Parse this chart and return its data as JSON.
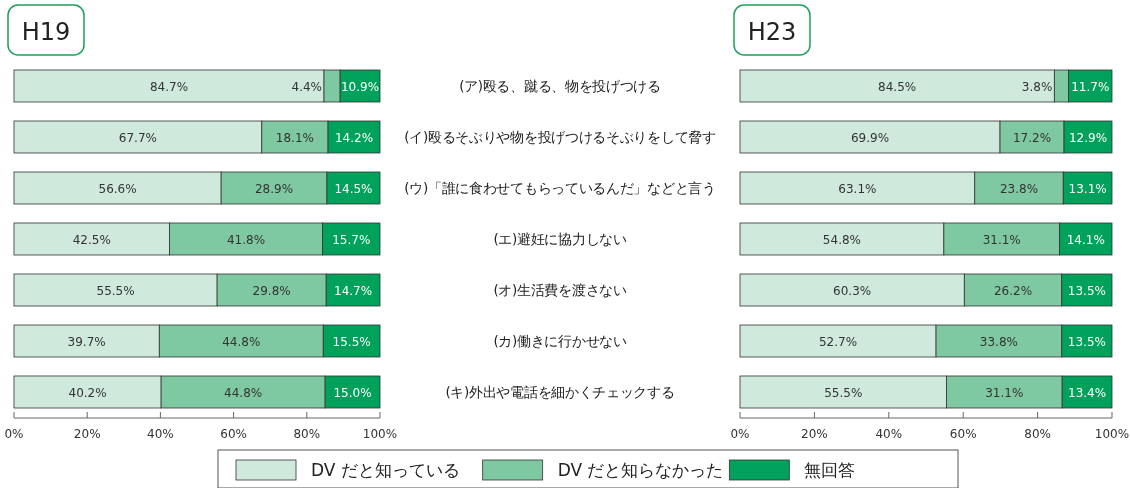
{
  "chart_data": [
    {
      "type": "bar",
      "orientation": "horizontal",
      "stacked": true,
      "title": "H19",
      "categories": [
        "(ア)殴る、蹴る、物を投げつける",
        "(イ)殴るそぶりや物を投げつけるそぶりをして脅す",
        "(ウ)「誰に食わせてもらっているんだ」などと言う",
        "(エ)避妊に協力しない",
        "(オ)生活費を渡さない",
        "(カ)働きに行かせない",
        "(キ)外出や電話を細かくチェックする"
      ],
      "series": [
        {
          "name": "DV だと知っている",
          "color": "#cfeadc",
          "values": [
            84.7,
            67.7,
            56.6,
            42.5,
            55.5,
            39.7,
            40.2
          ],
          "value_labels": [
            "84.7%",
            "67.7%",
            "56.6%",
            "42.5%",
            "55.5%",
            "39.7%",
            "40.2%"
          ]
        },
        {
          "name": "DV だと知らなかった",
          "color": "#7fc9a2",
          "values": [
            4.4,
            18.1,
            28.9,
            41.8,
            29.8,
            44.8,
            44.8
          ],
          "value_labels": [
            "4.4%",
            "18.1%",
            "28.9%",
            "41.8%",
            "29.8%",
            "44.8%",
            "44.8%"
          ]
        },
        {
          "name": "無回答",
          "color": "#00a15a",
          "values": [
            10.9,
            14.2,
            14.5,
            15.7,
            14.7,
            15.5,
            15.0
          ],
          "value_labels": [
            "10.9%",
            "14.2%",
            "14.5%",
            "15.7%",
            "14.7%",
            "15.5%",
            "15.0%"
          ]
        }
      ],
      "xlim": [
        0,
        100
      ],
      "xticks": [
        {
          "value": 0,
          "label": "0%"
        },
        {
          "value": 20,
          "label": "20%"
        },
        {
          "value": 40,
          "label": "40%"
        },
        {
          "value": 60,
          "label": "60%"
        },
        {
          "value": 80,
          "label": "80%"
        },
        {
          "value": 100,
          "label": "100%"
        }
      ],
      "legend": "bottom"
    },
    {
      "type": "bar",
      "orientation": "horizontal",
      "stacked": true,
      "title": "H23",
      "categories": [
        null,
        null,
        null,
        null,
        null,
        null,
        null
      ],
      "series": [
        {
          "color": "#cfeadc",
          "values": [
            84.5,
            69.9,
            63.1,
            54.8,
            60.3,
            52.7,
            55.5
          ],
          "value_labels": [
            "84.5%",
            "69.9%",
            "63.1%",
            "54.8%",
            "60.3%",
            "52.7%",
            "55.5%"
          ]
        },
        {
          "color": "#7fc9a2",
          "values": [
            3.8,
            17.2,
            23.8,
            31.1,
            26.2,
            33.8,
            31.1
          ],
          "value_labels": [
            "3.8%",
            "17.2%",
            "23.8%",
            "31.1%",
            "26.2%",
            "33.8%",
            "31.1%"
          ]
        },
        {
          "color": "#00a15a",
          "values": [
            11.7,
            12.9,
            13.1,
            14.1,
            13.5,
            13.5,
            13.4
          ],
          "value_labels": [
            "11.7%",
            "12.9%",
            "13.1%",
            "14.1%",
            "13.5%",
            "13.5%",
            "13.4%"
          ]
        }
      ],
      "xlim": [
        0,
        100
      ],
      "xticks": [
        {
          "value": 0,
          "label": "0%"
        },
        {
          "value": 20,
          "label": "20%"
        },
        {
          "value": 40,
          "label": "40%"
        },
        {
          "value": 60,
          "label": "60%"
        },
        {
          "value": 80,
          "label": "80%"
        },
        {
          "value": 100,
          "label": "100%"
        }
      ]
    }
  ]
}
